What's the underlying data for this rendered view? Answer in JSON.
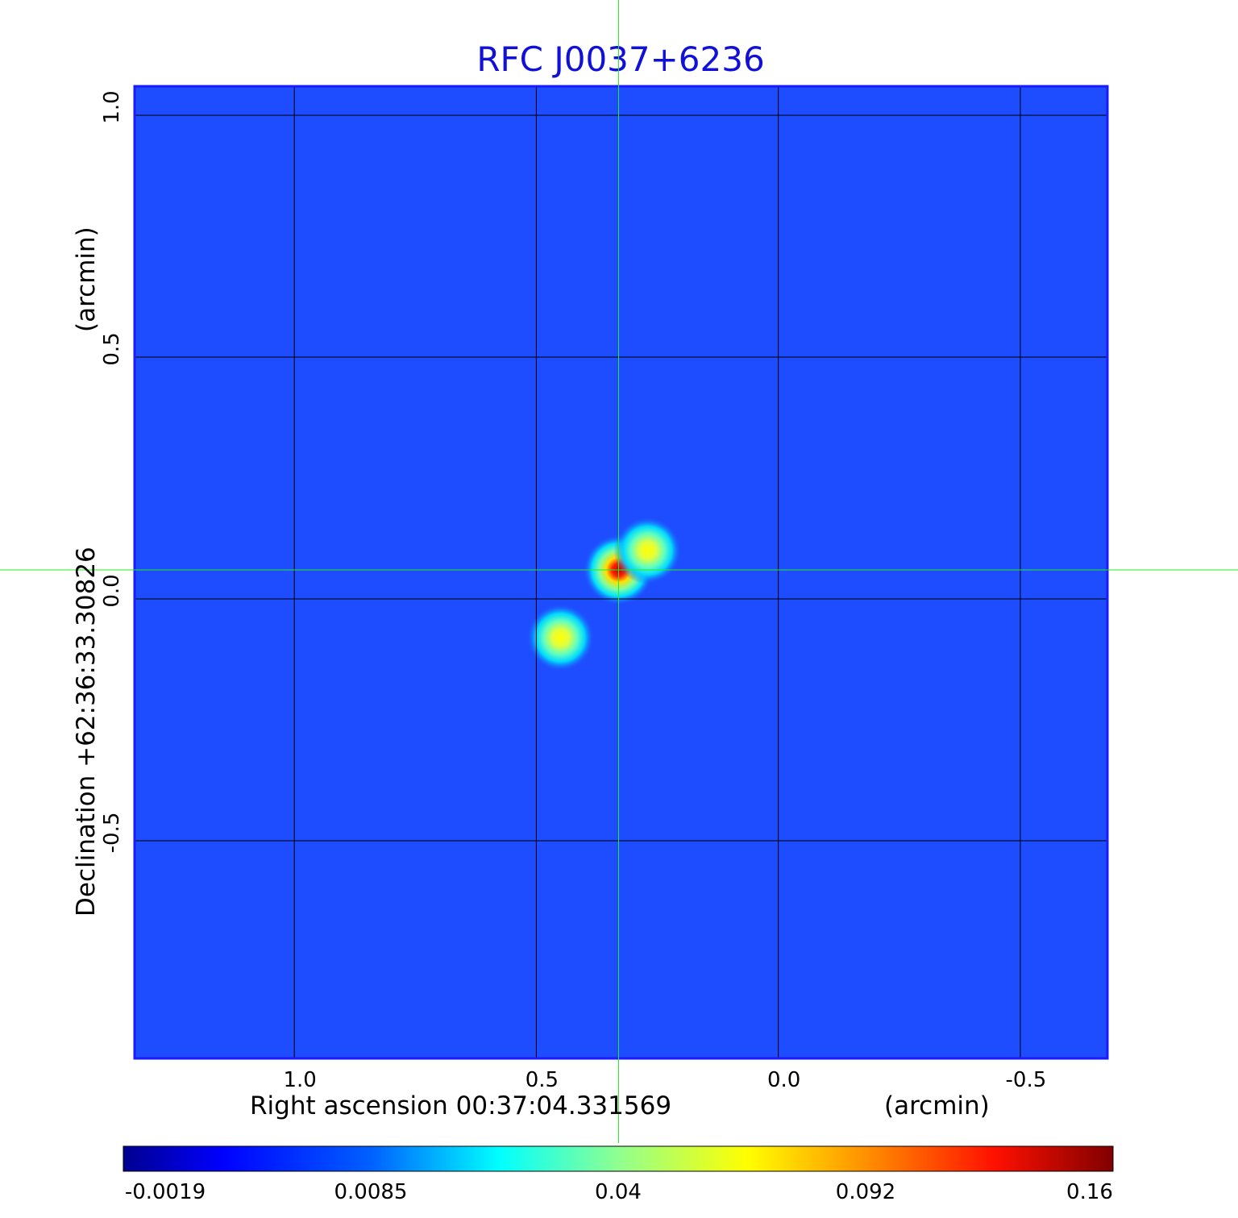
{
  "chart_data": {
    "type": "heatmap",
    "title": "RFC J0037+6236",
    "xlabel": "Right ascension  00:37:04.331569",
    "xlabel_unit": "(arcmin)",
    "ylabel": "Declination  +62:36:33.30826",
    "ylabel_unit": "(arcmin)",
    "x_ticks": [
      "1.0",
      "0.5",
      "0.0",
      "-0.5"
    ],
    "x_tick_values": [
      1.0,
      0.5,
      0.0,
      -0.5
    ],
    "y_ticks": [
      "1.0",
      "0.5",
      "0.0",
      "-0.5"
    ],
    "y_tick_values": [
      1.0,
      0.5,
      0.0,
      -0.5
    ],
    "xlim": [
      1.33,
      -0.68
    ],
    "ylim": [
      -0.95,
      1.06
    ],
    "grid": true,
    "colormap": "jet",
    "colorbar": {
      "ticks": [
        "-0.0019",
        "0.0085",
        "0.04",
        "0.092",
        "0.16"
      ],
      "tick_values": [
        -0.0019,
        0.0085,
        0.04,
        0.092,
        0.16
      ],
      "range": [
        -0.0019,
        0.16
      ]
    },
    "background_value": 0.0035,
    "sources": [
      {
        "x": 0.33,
        "y": 0.06,
        "peak": 0.16
      },
      {
        "x": 0.27,
        "y": 0.1,
        "peak": 0.065
      },
      {
        "x": 0.45,
        "y": -0.08,
        "peak": 0.065
      }
    ],
    "crosshair": {
      "x": 0.33,
      "y": 0.06
    }
  },
  "colors": {
    "title": "#1010d8",
    "grid": "#000000",
    "crosshair": "#22ee22",
    "frame": "#1a1aff"
  }
}
